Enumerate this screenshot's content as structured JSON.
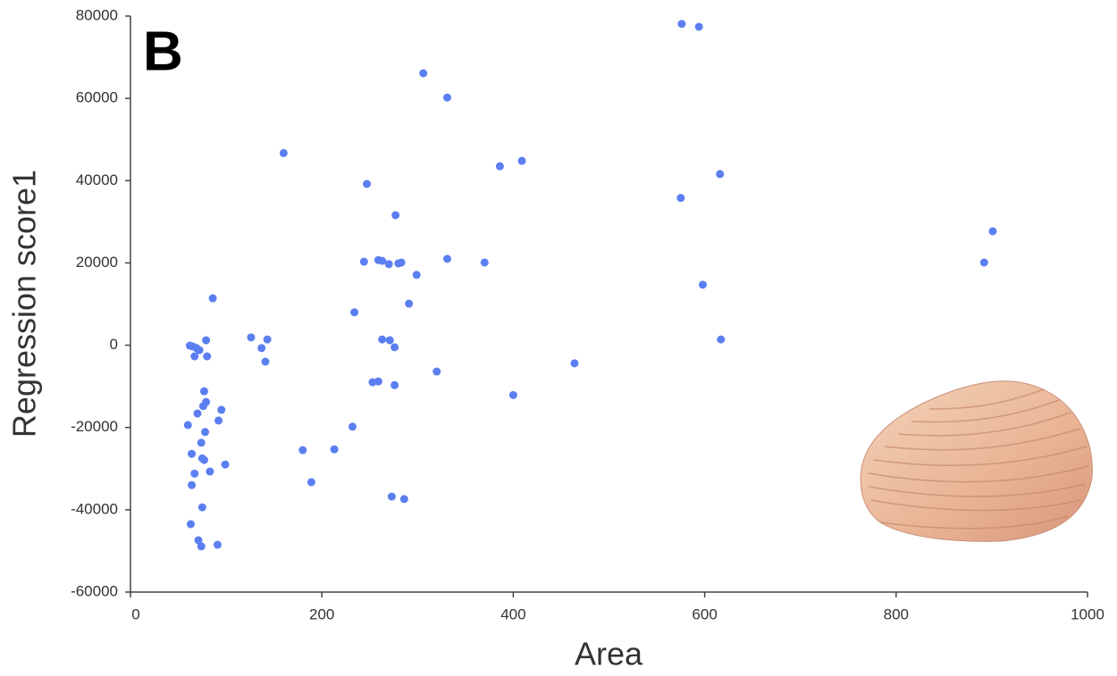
{
  "chart_data": {
    "type": "scatter",
    "panel_label": "B",
    "x_label": "Area",
    "y_label": "Regression score1",
    "color": "#5b7ff0",
    "x": [
      576,
      594,
      306,
      331,
      160,
      409,
      386,
      616,
      247,
      575,
      277,
      901,
      892,
      331,
      370,
      244,
      259,
      263,
      270,
      280,
      283,
      299,
      598,
      86,
      291,
      234,
      126,
      143,
      79,
      263,
      271,
      617,
      62,
      65,
      69,
      72,
      137,
      276,
      67,
      80,
      141,
      464,
      320,
      253,
      259,
      276,
      77,
      400,
      95,
      70,
      79,
      76,
      92,
      60,
      232,
      78,
      74,
      180,
      213,
      64,
      75,
      77,
      99,
      83,
      67,
      189,
      64,
      273,
      286,
      75,
      63,
      71,
      74,
      91
    ],
    "values": [
      78100,
      77400,
      66100,
      60200,
      46700,
      44800,
      43500,
      41600,
      39200,
      35800,
      31600,
      27700,
      20100,
      21000,
      20100,
      20300,
      20700,
      20500,
      19700,
      19900,
      20100,
      17100,
      14700,
      11400,
      10100,
      8000,
      1900,
      1400,
      1200,
      1400,
      1200,
      1400,
      -100,
      -300,
      -700,
      -1200,
      -700,
      -500,
      -2700,
      -2700,
      -4000,
      -4400,
      -6400,
      -9000,
      -8800,
      -9700,
      -11200,
      -12100,
      -15700,
      -16600,
      -13800,
      -14800,
      -18300,
      -19400,
      -19800,
      -21100,
      -23700,
      -25500,
      -25300,
      -26400,
      -27500,
      -27900,
      -29000,
      -30700,
      -31200,
      -33300,
      -34000,
      -36800,
      -37400,
      -39400,
      -43500,
      -47400,
      -48900,
      -48500
    ],
    "xlim": [
      0,
      1000
    ],
    "xticks": [
      0,
      200,
      400,
      600,
      800,
      1000
    ],
    "ylim": [
      -60000,
      80000
    ],
    "yticks": [
      -60000,
      -40000,
      -20000,
      0,
      20000,
      40000,
      60000,
      80000
    ]
  }
}
